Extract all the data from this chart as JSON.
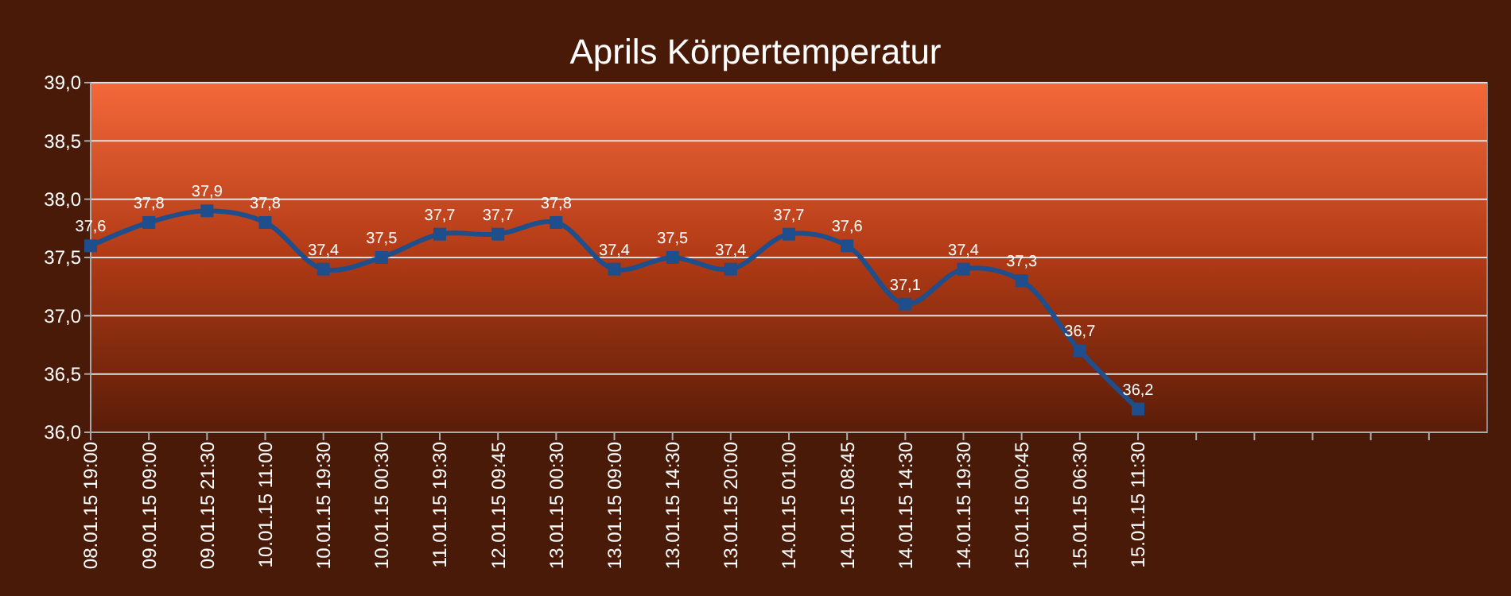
{
  "chart_data": {
    "type": "line",
    "title": "Aprils Körpertemperatur",
    "categories": [
      "08.01.15 19:00",
      "09.01.15 09:00",
      "09.01.15 21:30",
      "10.01.15 11:00",
      "10.01.15 19:30",
      "10.01.15 00:30",
      "11.01.15 19:30",
      "12.01.15 09:45",
      "13.01.15 00:30",
      "13.01.15 09:00",
      "13.01.15 14:30",
      "13.01.15 20:00",
      "14.01.15 01:00",
      "14.01.15 08:45",
      "14.01.15 14:30",
      "14.01.15 19:30",
      "15.01.15 00:45",
      "15.01.15 06:30",
      "15.01.15 11:30",
      null,
      null,
      null,
      null,
      null
    ],
    "series": [
      {
        "color": "#1f4e8c",
        "values": [
          37.6,
          37.8,
          37.9,
          37.8,
          37.4,
          37.5,
          37.7,
          37.7,
          37.8,
          37.4,
          37.5,
          37.4,
          37.7,
          37.6,
          37.1,
          37.4,
          37.3,
          36.7,
          36.2,
          null,
          null,
          null,
          null,
          null
        ],
        "value_labels": [
          "37,6",
          "37,8",
          "37,9",
          "37,8",
          "37,4",
          "37,5",
          "37,7",
          "37,7",
          "37,8",
          "37,4",
          "37,5",
          "37,4",
          "37,7",
          "37,6",
          "37,1",
          "37,4",
          "37,3",
          "36,7",
          "36,2",
          null,
          null,
          null,
          null,
          null
        ]
      }
    ],
    "ylim": [
      36,
      39
    ],
    "yticks": [
      {
        "value": 36,
        "label": "36,0"
      },
      {
        "value": 36.5,
        "label": "36,5"
      },
      {
        "value": 37,
        "label": "37,0"
      },
      {
        "value": 37.5,
        "label": "37,5"
      },
      {
        "value": 38,
        "label": "38,0"
      },
      {
        "value": 38.5,
        "label": "38,5"
      },
      {
        "value": 39,
        "label": "39,0"
      }
    ],
    "grid": "y",
    "marker": "square",
    "line_style": "solid"
  }
}
